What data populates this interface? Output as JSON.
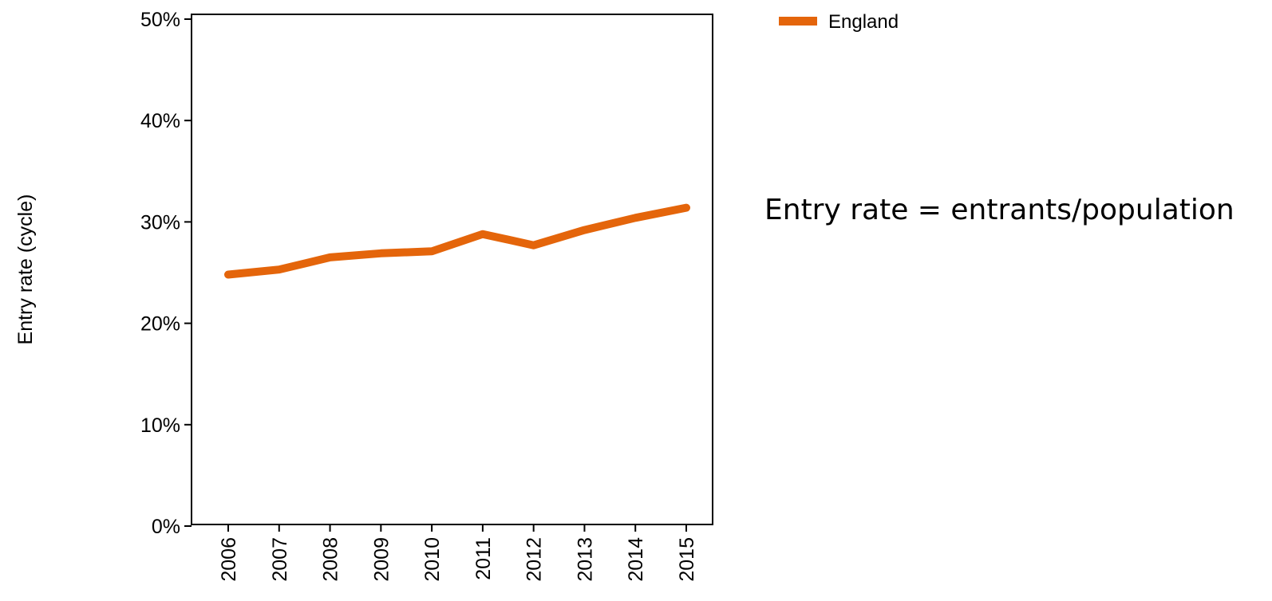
{
  "chart_data": {
    "type": "line",
    "ylabel": "Entry rate (cycle)",
    "xlabel": "",
    "x": [
      "2006",
      "2007",
      "2008",
      "2009",
      "2010",
      "2011",
      "2012",
      "2013",
      "2014",
      "2015"
    ],
    "yticks": [
      "0%",
      "10%",
      "20%",
      "30%",
      "40%",
      "50%"
    ],
    "ylim": [
      0,
      50
    ],
    "grid": false,
    "legend": "top-right",
    "series": [
      {
        "name": "England",
        "color": "#e4650b",
        "values": [
          24.8,
          25.3,
          26.5,
          26.9,
          27.1,
          28.8,
          27.7,
          29.2,
          30.4,
          31.4
        ]
      }
    ]
  },
  "annotation": "Entry rate = entrants/population"
}
